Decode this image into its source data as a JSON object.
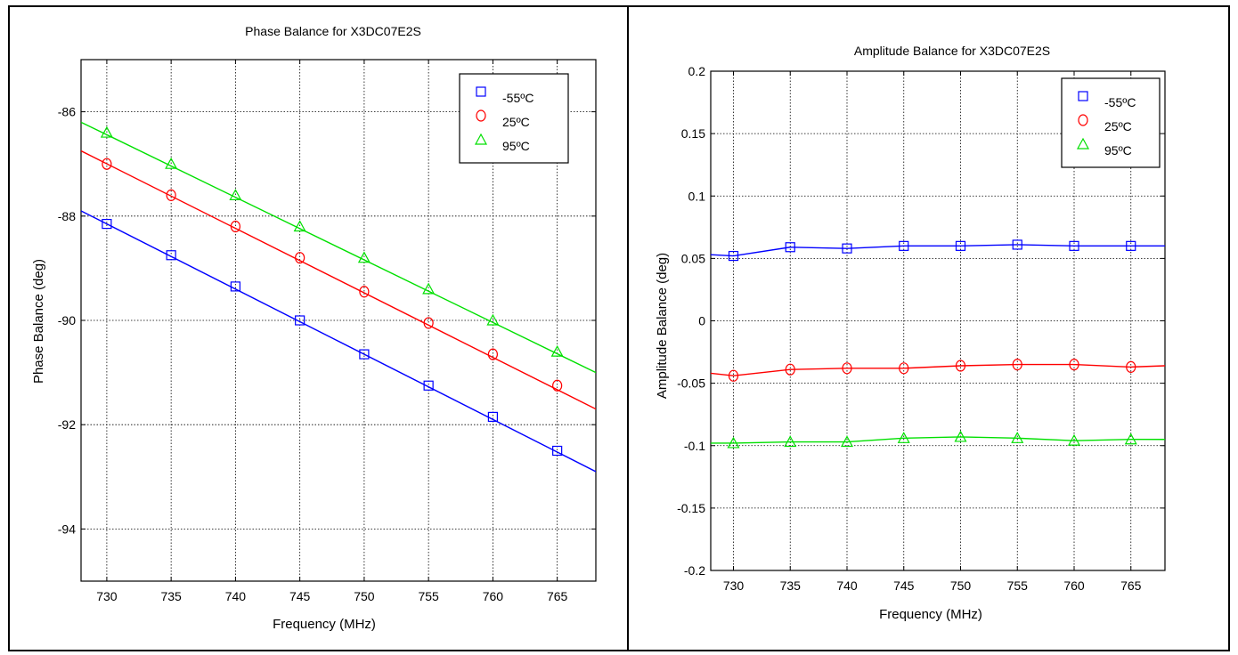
{
  "chart_data": [
    {
      "type": "line",
      "title": "Phase Balance for X3DC07E2S",
      "xlabel": "Frequency (MHz)",
      "ylabel": "Phase Balance (deg)",
      "xlim": [
        728,
        768
      ],
      "ylim": [
        -95,
        -85
      ],
      "xticks": [
        730,
        735,
        740,
        745,
        750,
        755,
        760,
        765
      ],
      "yticks": [
        -86,
        -88,
        -90,
        -92,
        -94
      ],
      "grid": true,
      "legend_position": "top-right",
      "series": [
        {
          "name": "-55ºC",
          "color": "#0000ff",
          "marker": "square",
          "x": [
            730,
            735,
            740,
            745,
            750,
            755,
            760,
            765
          ],
          "values": [
            -88.15,
            -88.75,
            -89.35,
            -90.0,
            -90.65,
            -91.25,
            -91.85,
            -92.5
          ],
          "line": {
            "x": [
              728,
              768
            ],
            "y": [
              -87.9,
              -92.9
            ]
          }
        },
        {
          "name": "25ºC",
          "color": "#ff0000",
          "marker": "circle",
          "x": [
            730,
            735,
            740,
            745,
            750,
            755,
            760,
            765
          ],
          "values": [
            -87.0,
            -87.6,
            -88.2,
            -88.8,
            -89.45,
            -90.05,
            -90.65,
            -91.25
          ],
          "line": {
            "x": [
              728,
              768
            ],
            "y": [
              -86.75,
              -91.7
            ]
          }
        },
        {
          "name": "95ºC",
          "color": "#00e000",
          "marker": "triangle",
          "x": [
            730,
            735,
            740,
            745,
            750,
            755,
            760,
            765
          ],
          "values": [
            -86.4,
            -87.0,
            -87.6,
            -88.2,
            -88.8,
            -89.4,
            -90.0,
            -90.6
          ],
          "line": {
            "x": [
              728,
              768
            ],
            "y": [
              -86.2,
              -91.0
            ]
          }
        }
      ]
    },
    {
      "type": "line",
      "title": "Amplitude Balance for X3DC07E2S",
      "xlabel": "Frequency (MHz)",
      "ylabel": "Amplitude Balance (deg)",
      "xlim": [
        728,
        768
      ],
      "ylim": [
        -0.2,
        0.2
      ],
      "xticks": [
        730,
        735,
        740,
        745,
        750,
        755,
        760,
        765
      ],
      "yticks": [
        0.2,
        0.15,
        0.1,
        0.05,
        0,
        -0.05,
        -0.1,
        -0.15,
        -0.2
      ],
      "ytick_labels": [
        "0.2",
        "0.15",
        "0.1",
        "0.05",
        "0",
        "-0.05",
        "-0.1",
        "-0.15",
        "-0.2"
      ],
      "grid": true,
      "legend_position": "top-right",
      "series": [
        {
          "name": "-55ºC",
          "color": "#0000ff",
          "marker": "square",
          "x": [
            728,
            730,
            735,
            740,
            745,
            750,
            755,
            760,
            765,
            768
          ],
          "values": [
            0.053,
            0.052,
            0.059,
            0.058,
            0.06,
            0.06,
            0.061,
            0.06,
            0.06,
            0.06
          ],
          "marker_x": [
            730,
            735,
            740,
            745,
            750,
            755,
            760,
            765
          ],
          "marker_values": [
            0.052,
            0.059,
            0.058,
            0.06,
            0.06,
            0.061,
            0.06,
            0.06
          ]
        },
        {
          "name": "25ºC",
          "color": "#ff0000",
          "marker": "circle",
          "x": [
            728,
            730,
            735,
            740,
            745,
            750,
            755,
            760,
            765,
            768
          ],
          "values": [
            -0.042,
            -0.044,
            -0.039,
            -0.038,
            -0.038,
            -0.036,
            -0.035,
            -0.035,
            -0.037,
            -0.036
          ],
          "marker_x": [
            730,
            735,
            740,
            745,
            750,
            755,
            760,
            765
          ],
          "marker_values": [
            -0.044,
            -0.039,
            -0.038,
            -0.038,
            -0.036,
            -0.035,
            -0.035,
            -0.037
          ]
        },
        {
          "name": "95ºC",
          "color": "#00e000",
          "marker": "triangle",
          "x": [
            728,
            730,
            735,
            740,
            745,
            750,
            755,
            760,
            765,
            768
          ],
          "values": [
            -0.098,
            -0.098,
            -0.097,
            -0.097,
            -0.094,
            -0.093,
            -0.094,
            -0.096,
            -0.095,
            -0.095
          ],
          "marker_x": [
            730,
            735,
            740,
            745,
            750,
            755,
            760,
            765
          ],
          "marker_values": [
            -0.098,
            -0.097,
            -0.097,
            -0.094,
            -0.093,
            -0.094,
            -0.096,
            -0.095
          ]
        }
      ]
    }
  ]
}
